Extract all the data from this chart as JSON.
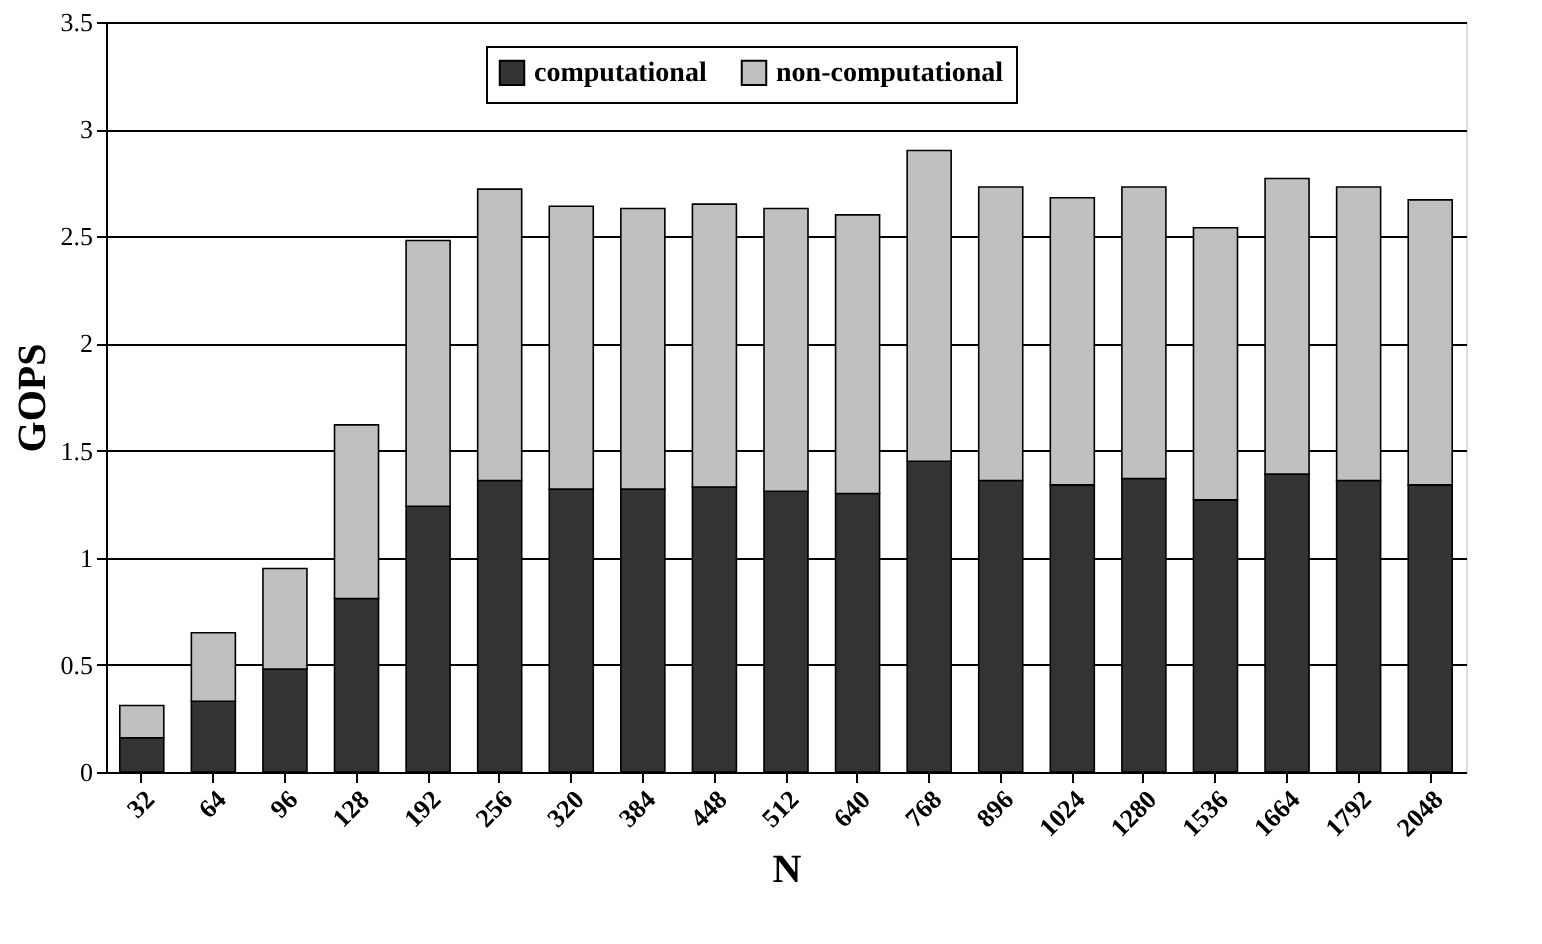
{
  "chart_data": {
    "type": "bar",
    "stacked": true,
    "xlabel": "N",
    "ylabel": "GOPS",
    "categories": [
      "32",
      "64",
      "96",
      "128",
      "192",
      "256",
      "320",
      "384",
      "448",
      "512",
      "640",
      "768",
      "896",
      "1024",
      "1280",
      "1536",
      "1664",
      "1792",
      "2048"
    ],
    "series": [
      {
        "name": "computational",
        "color": "#333333",
        "values": [
          0.16,
          0.33,
          0.48,
          0.81,
          1.24,
          1.36,
          1.32,
          1.32,
          1.33,
          1.31,
          1.3,
          1.45,
          1.36,
          1.34,
          1.37,
          1.27,
          1.39,
          1.36,
          1.34
        ]
      },
      {
        "name": "non-computational",
        "color": "#c0c0c0",
        "values": [
          0.15,
          0.32,
          0.47,
          0.81,
          1.24,
          1.36,
          1.32,
          1.31,
          1.32,
          1.32,
          1.3,
          1.45,
          1.37,
          1.34,
          1.36,
          1.27,
          1.38,
          1.37,
          1.33
        ]
      }
    ],
    "ylim": [
      0,
      3.5
    ],
    "yticks": [
      0,
      0.5,
      1,
      1.5,
      2,
      2.5,
      3,
      3.5
    ],
    "grid": "y",
    "legend": "top"
  }
}
